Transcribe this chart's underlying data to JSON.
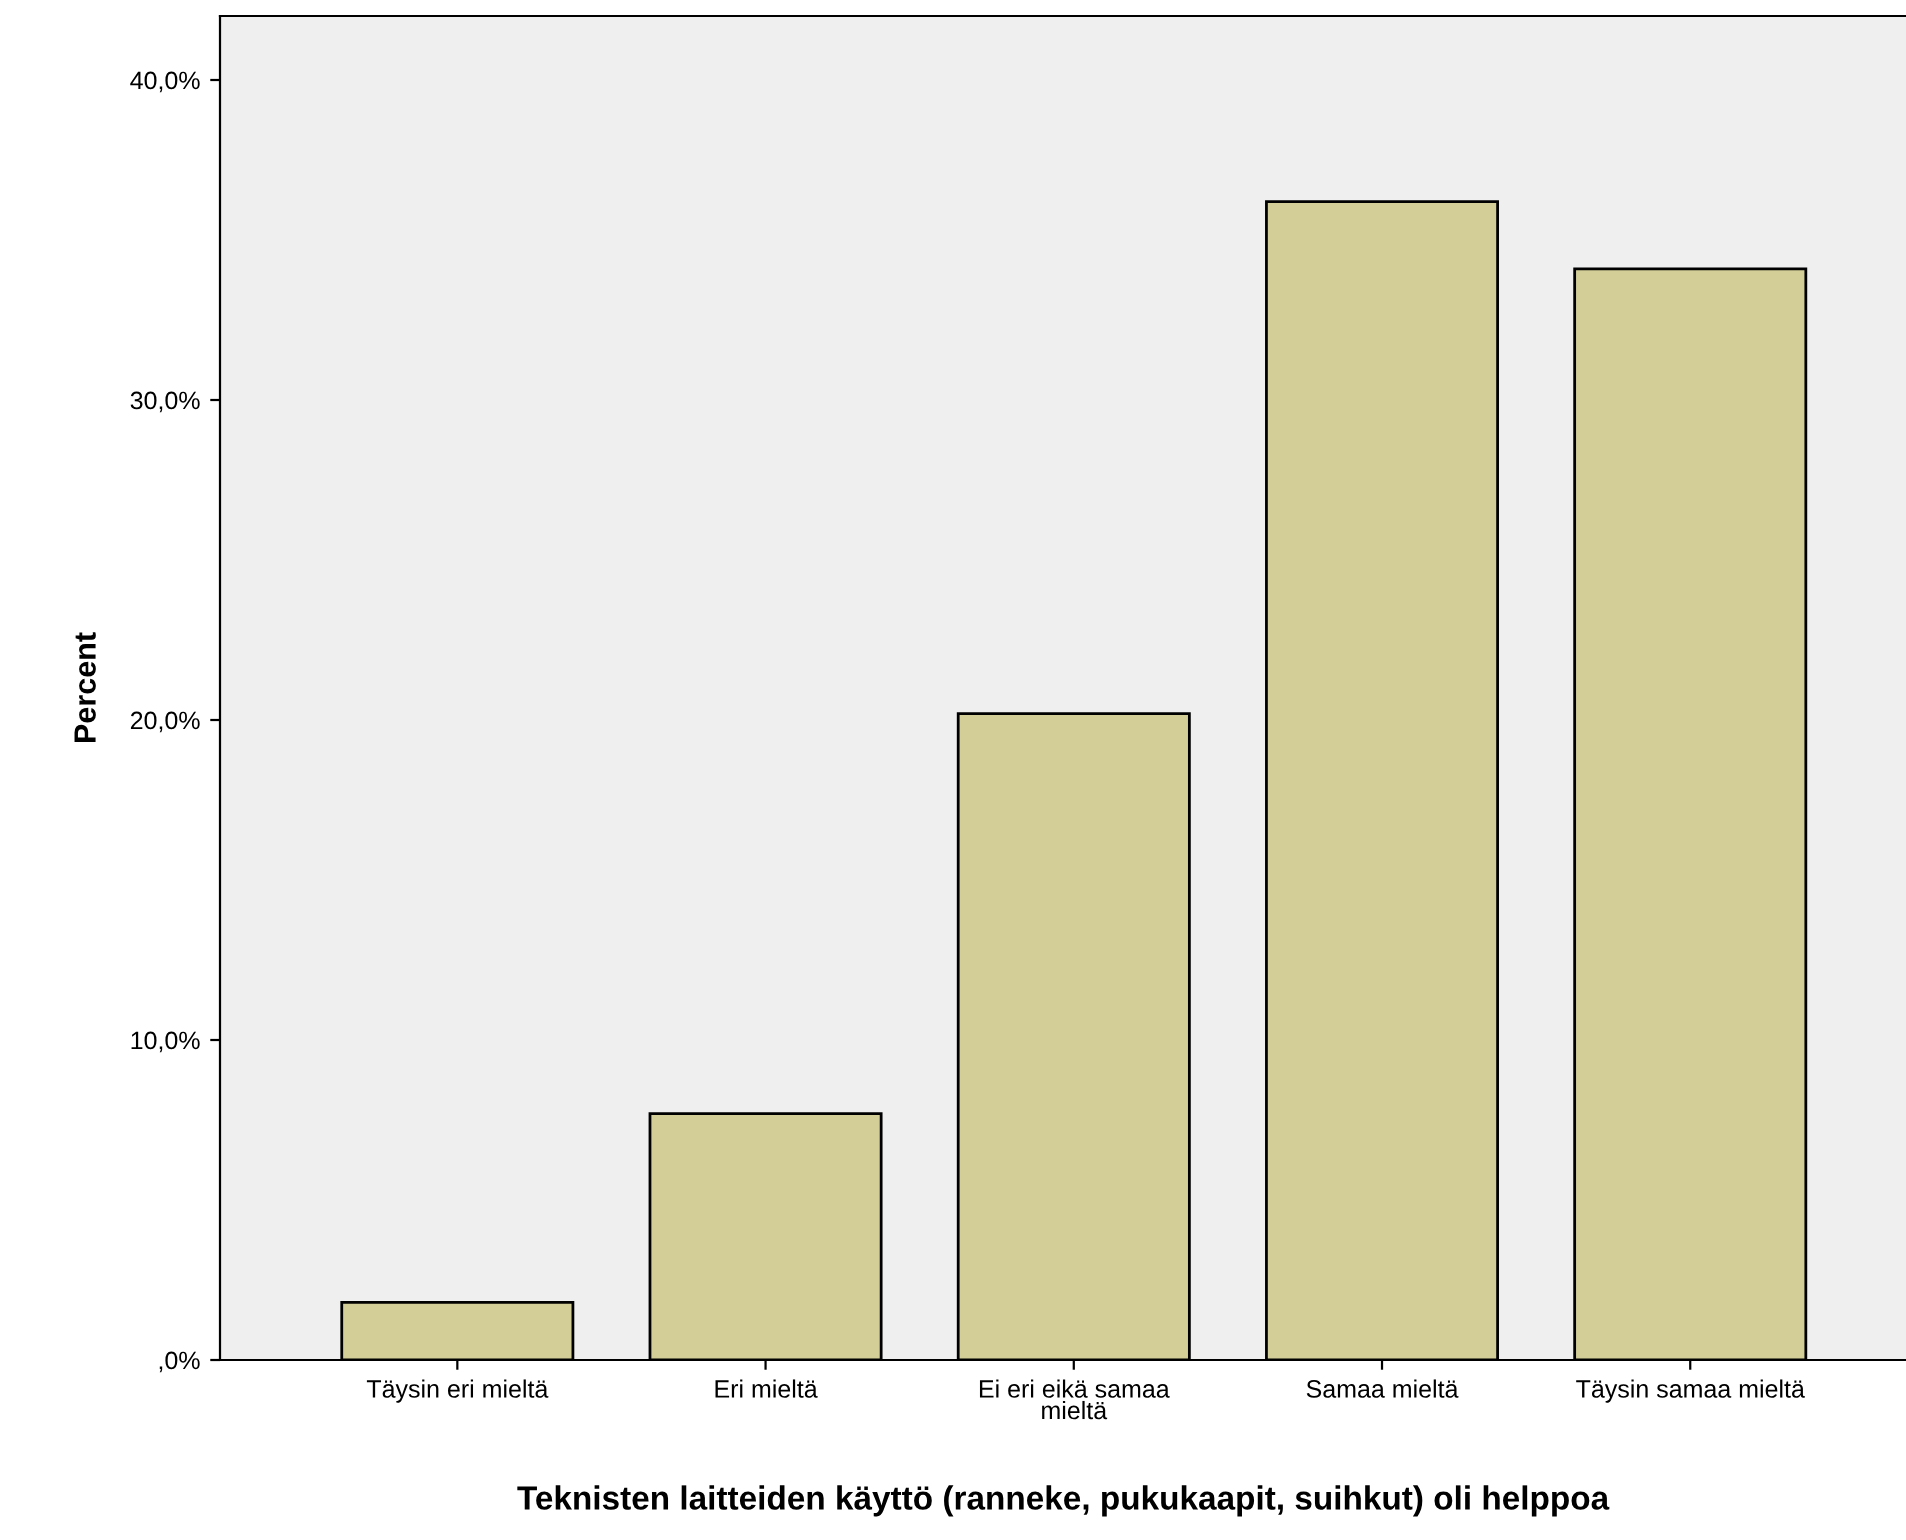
{
  "chart_data": {
    "type": "bar",
    "xlabel": "Teknisten laitteiden käyttö (ranneke, pukukaapit, suihkut) oli helppoa",
    "ylabel": "Percent",
    "categories": [
      "Täysin eri mieltä",
      "Eri mieltä",
      "Ei eri eikä samaa\nmieltä",
      "Samaa mieltä",
      "Täysin samaa mieltä"
    ],
    "values": [
      1.8,
      7.7,
      20.2,
      36.2,
      34.1
    ],
    "color": "#d3ce97",
    "ylim": [
      0,
      42
    ],
    "yticks": [
      {
        "value": 0,
        "label": ",0%"
      },
      {
        "value": 10,
        "label": "10,0%"
      },
      {
        "value": 20,
        "label": "20,0%"
      },
      {
        "value": 30,
        "label": "30,0%"
      },
      {
        "value": 40,
        "label": "40,0%"
      }
    ],
    "grid": false
  }
}
